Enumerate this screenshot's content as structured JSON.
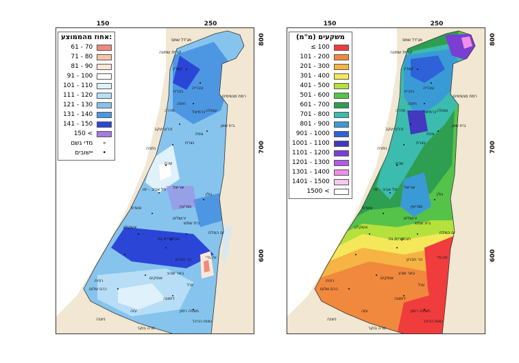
{
  "panels": {
    "left": {
      "x_ticks": [
        "150",
        "250"
      ],
      "y_ticks": [
        "800",
        "700",
        "600"
      ],
      "legend": {
        "title": "אחוז מהממוצע:",
        "items": [
          {
            "label": "61 - 70",
            "color": "#f08a7a"
          },
          {
            "label": "71 - 80",
            "color": "#f6c4a6"
          },
          {
            "label": "81 - 90",
            "color": "#fbe7da"
          },
          {
            "label": "91 - 100",
            "color": "#ffffff"
          },
          {
            "label": "101 - 110",
            "color": "#dff1fb"
          },
          {
            "label": "111 - 120",
            "color": "#b7def6"
          },
          {
            "label": "121 - 130",
            "color": "#86c4ee"
          },
          {
            "label": "131 - 140",
            "color": "#4d97e2"
          },
          {
            "label": "141 - 150",
            "color": "#2b46d6"
          },
          {
            "label": "150 <",
            "color": "#a57be0"
          }
        ],
        "symbols": [
          {
            "label": "מדי גשם",
            "glyph": "∘",
            "icon": "rain-gauge-icon"
          },
          {
            "label": "יישובים",
            "glyph": "•",
            "icon": "settlement-icon"
          }
        ]
      }
    },
    "right": {
      "x_ticks": [
        "150",
        "250"
      ],
      "y_ticks": [
        "800",
        "700",
        "600"
      ],
      "legend": {
        "title": "משקעים (מ\"מ)",
        "items": [
          {
            "label": "≤ 100",
            "color": "#f03c3c"
          },
          {
            "label": "101 - 200",
            "color": "#f0883e"
          },
          {
            "label": "201 - 300",
            "color": "#f5b443"
          },
          {
            "label": "301 - 400",
            "color": "#f5e75a"
          },
          {
            "label": "401 - 500",
            "color": "#b4e13c"
          },
          {
            "label": "501 - 600",
            "color": "#55c24a"
          },
          {
            "label": "601 - 700",
            "color": "#2e9e50"
          },
          {
            "label": "701 - 800",
            "color": "#3bbcae"
          },
          {
            "label": "801 - 900",
            "color": "#3a9ad6"
          },
          {
            "label": "901 - 1000",
            "color": "#2f62d8"
          },
          {
            "label": "1001 - 1100",
            "color": "#4338c0"
          },
          {
            "label": "1101 - 1200",
            "color": "#7a3ed2"
          },
          {
            "label": "1201 - 1300",
            "color": "#b35ae4"
          },
          {
            "label": "1301 - 1400",
            "color": "#f08ee8"
          },
          {
            "label": "1401 - 1500",
            "color": "#f8c8f2"
          },
          {
            "label": "1500 <",
            "color": "#ffffff"
          }
        ]
      }
    }
  },
  "place_names": [
    "מג'דל שמס",
    "קריית שמונה",
    "קצרין",
    "נהריה",
    "חיפה",
    "טבריה",
    "חדרה",
    "עפולה",
    "בית שאן",
    "נתניה",
    "שכם",
    "אריאל",
    "תל אביב - יפו",
    "ירושלים",
    "אשקלון",
    "אשדוד",
    "קריית גת",
    "חברון",
    "הר חברון",
    "עין גדי",
    "באר שבע",
    "אופקים",
    "ערד",
    "דימונה",
    "מצפה רמון",
    "שדה בוקר",
    "ניצנה",
    "רפיח",
    "כרם שלום",
    "רמת מגשימים",
    "זכרון יעקב",
    "בית שמש",
    "נאות הכיכר",
    "עזה",
    "גולן",
    "צפת",
    "כרמיאל",
    "נצרת",
    "מודיעין",
    "ים המלח"
  ]
}
